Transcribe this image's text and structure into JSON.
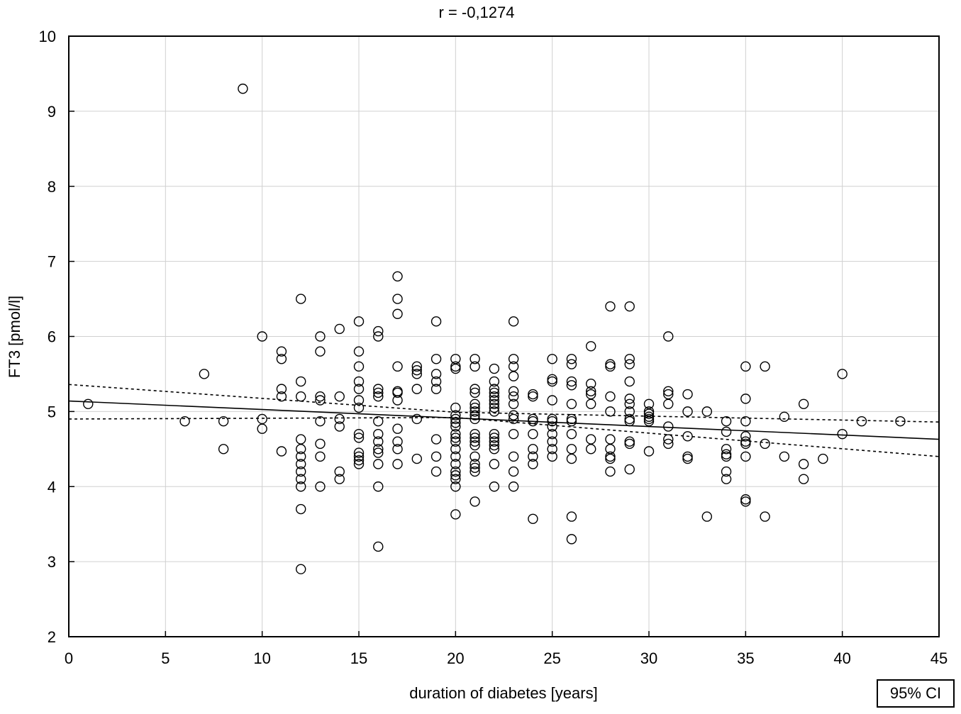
{
  "chart_data": {
    "type": "scatter",
    "title": "r = -0,1274",
    "xlabel": "duration of diabetes [years]",
    "ylabel": "FT3 [pmol/l]",
    "xlim": [
      0,
      45
    ],
    "ylim": [
      2,
      10
    ],
    "x_ticks": [
      "0",
      "5",
      "10",
      "15",
      "20",
      "25",
      "30",
      "35",
      "40",
      "45"
    ],
    "y_ticks": [
      "2",
      "3",
      "4",
      "5",
      "6",
      "7",
      "8",
      "9",
      "10"
    ],
    "grid": true,
    "legend_text": "95% CI",
    "legend_placement": "bottom-right",
    "regression_line": {
      "x": [
        0,
        45
      ],
      "y": [
        5.14,
        4.63
      ]
    },
    "ci_upper": {
      "x": [
        0,
        20,
        45
      ],
      "y": [
        5.36,
        4.99,
        4.86
      ]
    },
    "ci_lower": {
      "x": [
        0,
        20,
        45
      ],
      "y": [
        4.9,
        4.92,
        4.4
      ]
    },
    "series": [
      {
        "points": [
          [
            1,
            5.1
          ],
          [
            6,
            4.87
          ],
          [
            7,
            5.5
          ],
          [
            8,
            4.87
          ],
          [
            8,
            4.5
          ],
          [
            9,
            9.3
          ],
          [
            10,
            6.0
          ],
          [
            10,
            4.9
          ],
          [
            10,
            4.77
          ],
          [
            11,
            5.8
          ],
          [
            11,
            5.7
          ],
          [
            11,
            5.3
          ],
          [
            11,
            5.2
          ],
          [
            11,
            4.47
          ],
          [
            12,
            6.5
          ],
          [
            12,
            5.4
          ],
          [
            12,
            5.2
          ],
          [
            12,
            4.63
          ],
          [
            12,
            4.5
          ],
          [
            12,
            4.4
          ],
          [
            12,
            4.3
          ],
          [
            12,
            4.2
          ],
          [
            12,
            4.1
          ],
          [
            12,
            4.0
          ],
          [
            12,
            3.7
          ],
          [
            12,
            2.9
          ],
          [
            13,
            6.0
          ],
          [
            13,
            5.8
          ],
          [
            13,
            5.2
          ],
          [
            13,
            5.15
          ],
          [
            13,
            4.87
          ],
          [
            13,
            4.57
          ],
          [
            13,
            4.4
          ],
          [
            13,
            4.0
          ],
          [
            14,
            6.1
          ],
          [
            14,
            5.2
          ],
          [
            14,
            4.9
          ],
          [
            14,
            4.8
          ],
          [
            14,
            4.2
          ],
          [
            14,
            4.1
          ],
          [
            15,
            6.2
          ],
          [
            15,
            5.8
          ],
          [
            15,
            5.6
          ],
          [
            15,
            5.4
          ],
          [
            15,
            5.3
          ],
          [
            15,
            5.15
          ],
          [
            15,
            5.05
          ],
          [
            15,
            4.7
          ],
          [
            15,
            4.65
          ],
          [
            15,
            4.45
          ],
          [
            15,
            4.4
          ],
          [
            15,
            4.35
          ],
          [
            15,
            4.3
          ],
          [
            16,
            6.07
          ],
          [
            16,
            6.0
          ],
          [
            16,
            5.3
          ],
          [
            16,
            5.25
          ],
          [
            16,
            5.2
          ],
          [
            16,
            4.87
          ],
          [
            16,
            4.7
          ],
          [
            16,
            4.6
          ],
          [
            16,
            4.5
          ],
          [
            16,
            4.45
          ],
          [
            16,
            4.3
          ],
          [
            16,
            4.0
          ],
          [
            16,
            3.2
          ],
          [
            17,
            6.8
          ],
          [
            17,
            6.5
          ],
          [
            17,
            6.3
          ],
          [
            17,
            5.6
          ],
          [
            17,
            5.27
          ],
          [
            17,
            5.25
          ],
          [
            17,
            5.15
          ],
          [
            17,
            4.77
          ],
          [
            17,
            4.6
          ],
          [
            17,
            4.5
          ],
          [
            17,
            4.3
          ],
          [
            18,
            5.6
          ],
          [
            18,
            5.55
          ],
          [
            18,
            5.5
          ],
          [
            18,
            5.3
          ],
          [
            18,
            4.9
          ],
          [
            18,
            4.37
          ],
          [
            19,
            6.2
          ],
          [
            19,
            5.7
          ],
          [
            19,
            5.5
          ],
          [
            19,
            5.4
          ],
          [
            19,
            5.3
          ],
          [
            19,
            4.63
          ],
          [
            19,
            4.4
          ],
          [
            19,
            4.2
          ],
          [
            20,
            5.7
          ],
          [
            20,
            5.6
          ],
          [
            20,
            5.57
          ],
          [
            20,
            5.05
          ],
          [
            20,
            4.95
          ],
          [
            20,
            4.9
          ],
          [
            20,
            4.85
          ],
          [
            20,
            4.8
          ],
          [
            20,
            4.7
          ],
          [
            20,
            4.65
          ],
          [
            20,
            4.6
          ],
          [
            20,
            4.5
          ],
          [
            20,
            4.4
          ],
          [
            20,
            4.3
          ],
          [
            20,
            4.2
          ],
          [
            20,
            4.15
          ],
          [
            20,
            4.1
          ],
          [
            20,
            4.0
          ],
          [
            20,
            3.63
          ],
          [
            21,
            5.7
          ],
          [
            21,
            5.6
          ],
          [
            21,
            5.3
          ],
          [
            21,
            5.25
          ],
          [
            21,
            5.1
          ],
          [
            21,
            5.05
          ],
          [
            21,
            5.0
          ],
          [
            21,
            4.95
          ],
          [
            21,
            4.9
          ],
          [
            21,
            4.7
          ],
          [
            21,
            4.65
          ],
          [
            21,
            4.6
          ],
          [
            21,
            4.55
          ],
          [
            21,
            4.4
          ],
          [
            21,
            4.3
          ],
          [
            21,
            4.25
          ],
          [
            21,
            4.2
          ],
          [
            21,
            3.8
          ],
          [
            22,
            5.57
          ],
          [
            22,
            5.4
          ],
          [
            22,
            5.3
          ],
          [
            22,
            5.25
          ],
          [
            22,
            5.2
          ],
          [
            22,
            5.15
          ],
          [
            22,
            5.1
          ],
          [
            22,
            5.05
          ],
          [
            22,
            5.0
          ],
          [
            22,
            4.7
          ],
          [
            22,
            4.65
          ],
          [
            22,
            4.6
          ],
          [
            22,
            4.55
          ],
          [
            22,
            4.5
          ],
          [
            22,
            4.3
          ],
          [
            22,
            4.0
          ],
          [
            23,
            6.2
          ],
          [
            23,
            5.7
          ],
          [
            23,
            5.6
          ],
          [
            23,
            5.47
          ],
          [
            23,
            5.27
          ],
          [
            23,
            5.2
          ],
          [
            23,
            5.1
          ],
          [
            23,
            4.95
          ],
          [
            23,
            4.9
          ],
          [
            23,
            4.7
          ],
          [
            23,
            4.4
          ],
          [
            23,
            4.2
          ],
          [
            23,
            4.0
          ],
          [
            24,
            5.23
          ],
          [
            24,
            5.2
          ],
          [
            24,
            4.9
          ],
          [
            24,
            4.87
          ],
          [
            24,
            4.7
          ],
          [
            24,
            4.5
          ],
          [
            24,
            4.4
          ],
          [
            24,
            4.3
          ],
          [
            24,
            3.57
          ],
          [
            25,
            5.7
          ],
          [
            25,
            5.43
          ],
          [
            25,
            5.4
          ],
          [
            25,
            5.15
          ],
          [
            25,
            4.9
          ],
          [
            25,
            4.87
          ],
          [
            25,
            4.8
          ],
          [
            25,
            4.7
          ],
          [
            25,
            4.6
          ],
          [
            25,
            4.5
          ],
          [
            25,
            4.4
          ],
          [
            26,
            5.7
          ],
          [
            26,
            5.63
          ],
          [
            26,
            5.4
          ],
          [
            26,
            5.35
          ],
          [
            26,
            5.1
          ],
          [
            26,
            4.9
          ],
          [
            26,
            4.87
          ],
          [
            26,
            4.7
          ],
          [
            26,
            4.5
          ],
          [
            26,
            4.37
          ],
          [
            26,
            3.6
          ],
          [
            26,
            3.3
          ],
          [
            27,
            5.87
          ],
          [
            27,
            5.37
          ],
          [
            27,
            5.27
          ],
          [
            27,
            5.23
          ],
          [
            27,
            5.1
          ],
          [
            27,
            4.63
          ],
          [
            27,
            4.5
          ],
          [
            28,
            6.4
          ],
          [
            28,
            5.63
          ],
          [
            28,
            5.6
          ],
          [
            28,
            5.2
          ],
          [
            28,
            5.0
          ],
          [
            28,
            4.63
          ],
          [
            28,
            4.5
          ],
          [
            28,
            4.4
          ],
          [
            28,
            4.37
          ],
          [
            28,
            4.2
          ],
          [
            29,
            6.4
          ],
          [
            29,
            5.7
          ],
          [
            29,
            5.63
          ],
          [
            29,
            5.4
          ],
          [
            29,
            5.17
          ],
          [
            29,
            5.1
          ],
          [
            29,
            5.0
          ],
          [
            29,
            4.9
          ],
          [
            29,
            4.87
          ],
          [
            29,
            4.6
          ],
          [
            29,
            4.57
          ],
          [
            29,
            4.23
          ],
          [
            30,
            5.1
          ],
          [
            30,
            5.0
          ],
          [
            30,
            4.97
          ],
          [
            30,
            4.93
          ],
          [
            30,
            4.9
          ],
          [
            30,
            4.87
          ],
          [
            30,
            4.47
          ],
          [
            31,
            6.0
          ],
          [
            31,
            5.27
          ],
          [
            31,
            5.23
          ],
          [
            31,
            5.1
          ],
          [
            31,
            4.8
          ],
          [
            31,
            4.63
          ],
          [
            31,
            4.57
          ],
          [
            32,
            5.23
          ],
          [
            32,
            5.0
          ],
          [
            32,
            4.67
          ],
          [
            32,
            4.4
          ],
          [
            32,
            4.37
          ],
          [
            33,
            5.0
          ],
          [
            33,
            3.6
          ],
          [
            34,
            4.87
          ],
          [
            34,
            4.73
          ],
          [
            34,
            4.5
          ],
          [
            34,
            4.43
          ],
          [
            34,
            4.4
          ],
          [
            34,
            4.2
          ],
          [
            34,
            4.1
          ],
          [
            35,
            5.6
          ],
          [
            35,
            5.17
          ],
          [
            35,
            4.87
          ],
          [
            35,
            4.67
          ],
          [
            35,
            4.6
          ],
          [
            35,
            4.57
          ],
          [
            35,
            4.4
          ],
          [
            35,
            3.83
          ],
          [
            35,
            3.8
          ],
          [
            36,
            5.6
          ],
          [
            36,
            4.57
          ],
          [
            36,
            3.6
          ],
          [
            37,
            4.93
          ],
          [
            37,
            4.4
          ],
          [
            38,
            5.1
          ],
          [
            38,
            4.3
          ],
          [
            38,
            4.1
          ],
          [
            39,
            4.37
          ],
          [
            40,
            5.5
          ],
          [
            40,
            4.7
          ],
          [
            41,
            4.87
          ],
          [
            43,
            4.87
          ]
        ]
      }
    ]
  }
}
